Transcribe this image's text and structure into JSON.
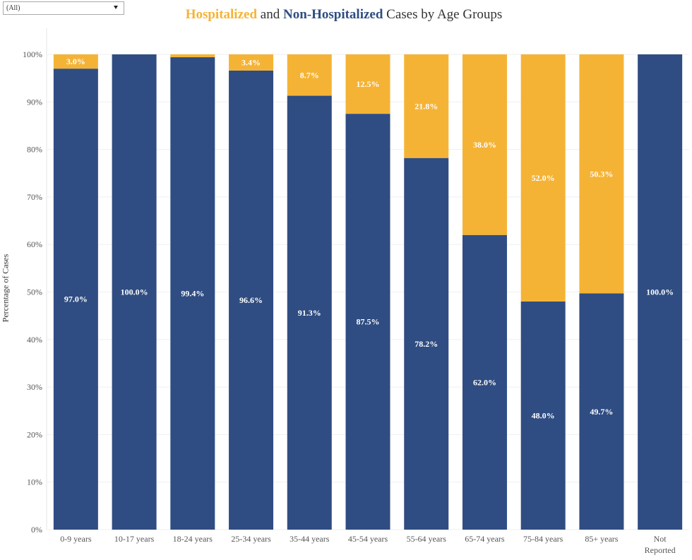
{
  "filter": {
    "value": "(All)",
    "icon": "chevron-down-icon"
  },
  "title": {
    "part1": "Hospitalized",
    "part2": " and ",
    "part3": "Non-Hospitalized",
    "part4": " Cases by Age Groups"
  },
  "colors": {
    "hospitalized": "#f5b335",
    "non_hospitalized": "#2f4d82"
  },
  "chart_data": {
    "type": "bar",
    "stacked": true,
    "categories": [
      "0-9 years",
      "10-17 years",
      "18-24 years",
      "25-34 years",
      "35-44 years",
      "45-54 years",
      "55-64 years",
      "65-74 years",
      "75-84 years",
      "85+ years",
      "Not Reported"
    ],
    "series": [
      {
        "name": "Non-Hospitalized",
        "values": [
          97.0,
          100.0,
          99.4,
          96.6,
          91.3,
          87.5,
          78.2,
          62.0,
          48.0,
          49.7,
          100.0
        ],
        "labels": [
          "97.0%",
          "100.0%",
          "99.4%",
          "96.6%",
          "91.3%",
          "87.5%",
          "78.2%",
          "62.0%",
          "48.0%",
          "49.7%",
          "100.0%"
        ]
      },
      {
        "name": "Hospitalized",
        "values": [
          3.0,
          0.0,
          0.6,
          3.4,
          8.7,
          12.5,
          21.8,
          38.0,
          52.0,
          50.3,
          0.0
        ],
        "labels": [
          "3.0%",
          "",
          "",
          "3.4%",
          "8.7%",
          "12.5%",
          "21.8%",
          "38.0%",
          "52.0%",
          "50.3%",
          ""
        ]
      }
    ],
    "ylabel": "Percentage of Cases",
    "ylim": [
      0,
      100
    ],
    "yticks": [
      "0%",
      "10%",
      "20%",
      "30%",
      "40%",
      "50%",
      "60%",
      "70%",
      "80%",
      "90%",
      "100%"
    ],
    "grid": true
  }
}
